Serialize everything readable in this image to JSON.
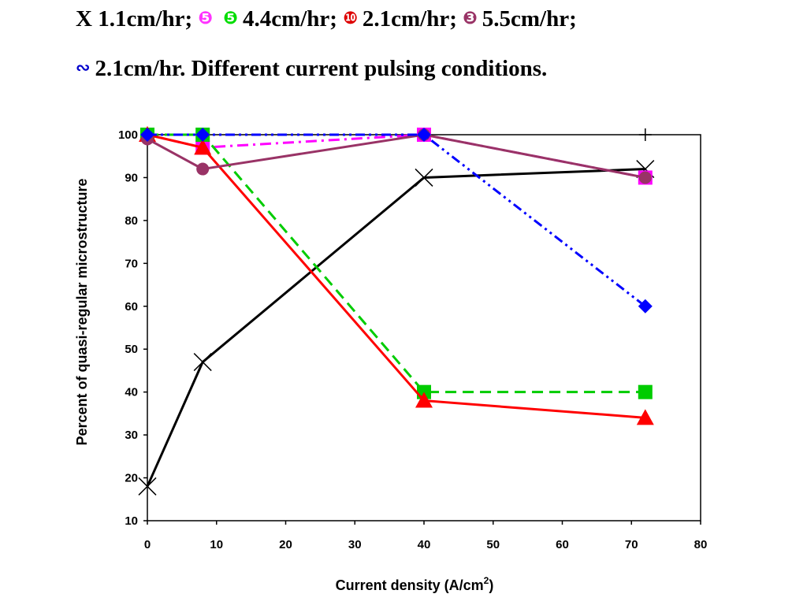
{
  "caption": {
    "line1": [
      {
        "symbol": "",
        "symbol_color": "#000000",
        "text": "X 1.1cm/hr;"
      },
      {
        "symbol": "❺",
        "symbol_color": "#ff33ff",
        "text": ""
      },
      {
        "symbol": "❺",
        "symbol_color": "#00dd00",
        "text": "4.4cm/hr;"
      },
      {
        "symbol": "❿",
        "symbol_color": "#dd0000",
        "text": "2.1cm/hr;"
      },
      {
        "symbol": "❸",
        "symbol_color": "#993366",
        "text": "5.5cm/hr;"
      }
    ],
    "line2": [
      {
        "symbol": "∾",
        "symbol_color": "#0000cc",
        "text": "2.1cm/hr.  Different current pulsing conditions."
      }
    ]
  },
  "chart_data": {
    "type": "line",
    "title": "",
    "xlabel": "Current density (A/cm",
    "xlabel_sup": "2",
    "xlabel_end": ")",
    "ylabel": "Percent of quasi-regular microstructure",
    "xlim": [
      0,
      80
    ],
    "ylim": [
      10,
      100
    ],
    "xticks": [
      "0",
      "10",
      "20",
      "30",
      "40",
      "50",
      "60",
      "70",
      "80"
    ],
    "yticks": [
      "10",
      "20",
      "30",
      "40",
      "50",
      "60",
      "70",
      "80",
      "90",
      "100"
    ],
    "grid": false,
    "legend": "none",
    "series": [
      {
        "marker": "x",
        "color": "#000000",
        "dash": "solid",
        "points": [
          [
            0,
            18
          ],
          [
            8,
            47
          ],
          [
            40,
            90
          ],
          [
            72,
            92
          ]
        ]
      },
      {
        "marker": "plus",
        "color": "#000000",
        "dash": "none",
        "points": [
          [
            0,
            100
          ],
          [
            8,
            100
          ],
          [
            40,
            100
          ],
          [
            72,
            100
          ]
        ]
      },
      {
        "marker": "square",
        "color": "#ff00ff",
        "dash": "dashdot",
        "points": [
          [
            0,
            100
          ],
          [
            8,
            97
          ],
          [
            40,
            100
          ],
          [
            72,
            90
          ]
        ]
      },
      {
        "marker": "square",
        "color": "#00cc00",
        "dash": "dashed",
        "points": [
          [
            0,
            100
          ],
          [
            8,
            100
          ],
          [
            40,
            40
          ],
          [
            72,
            40
          ]
        ]
      },
      {
        "marker": "triangle",
        "color": "#ff0000",
        "dash": "solid",
        "points": [
          [
            0,
            100
          ],
          [
            8,
            97
          ],
          [
            40,
            38
          ],
          [
            72,
            34
          ]
        ]
      },
      {
        "marker": "circle",
        "color": "#993366",
        "dash": "solid",
        "points": [
          [
            0,
            99
          ],
          [
            8,
            92
          ],
          [
            40,
            100
          ],
          [
            72,
            90
          ]
        ]
      },
      {
        "marker": "diamond",
        "color": "#0000ff",
        "dash": "dashdotdot",
        "points": [
          [
            0,
            100
          ],
          [
            8,
            100
          ],
          [
            40,
            100
          ],
          [
            72,
            60
          ]
        ]
      }
    ]
  }
}
